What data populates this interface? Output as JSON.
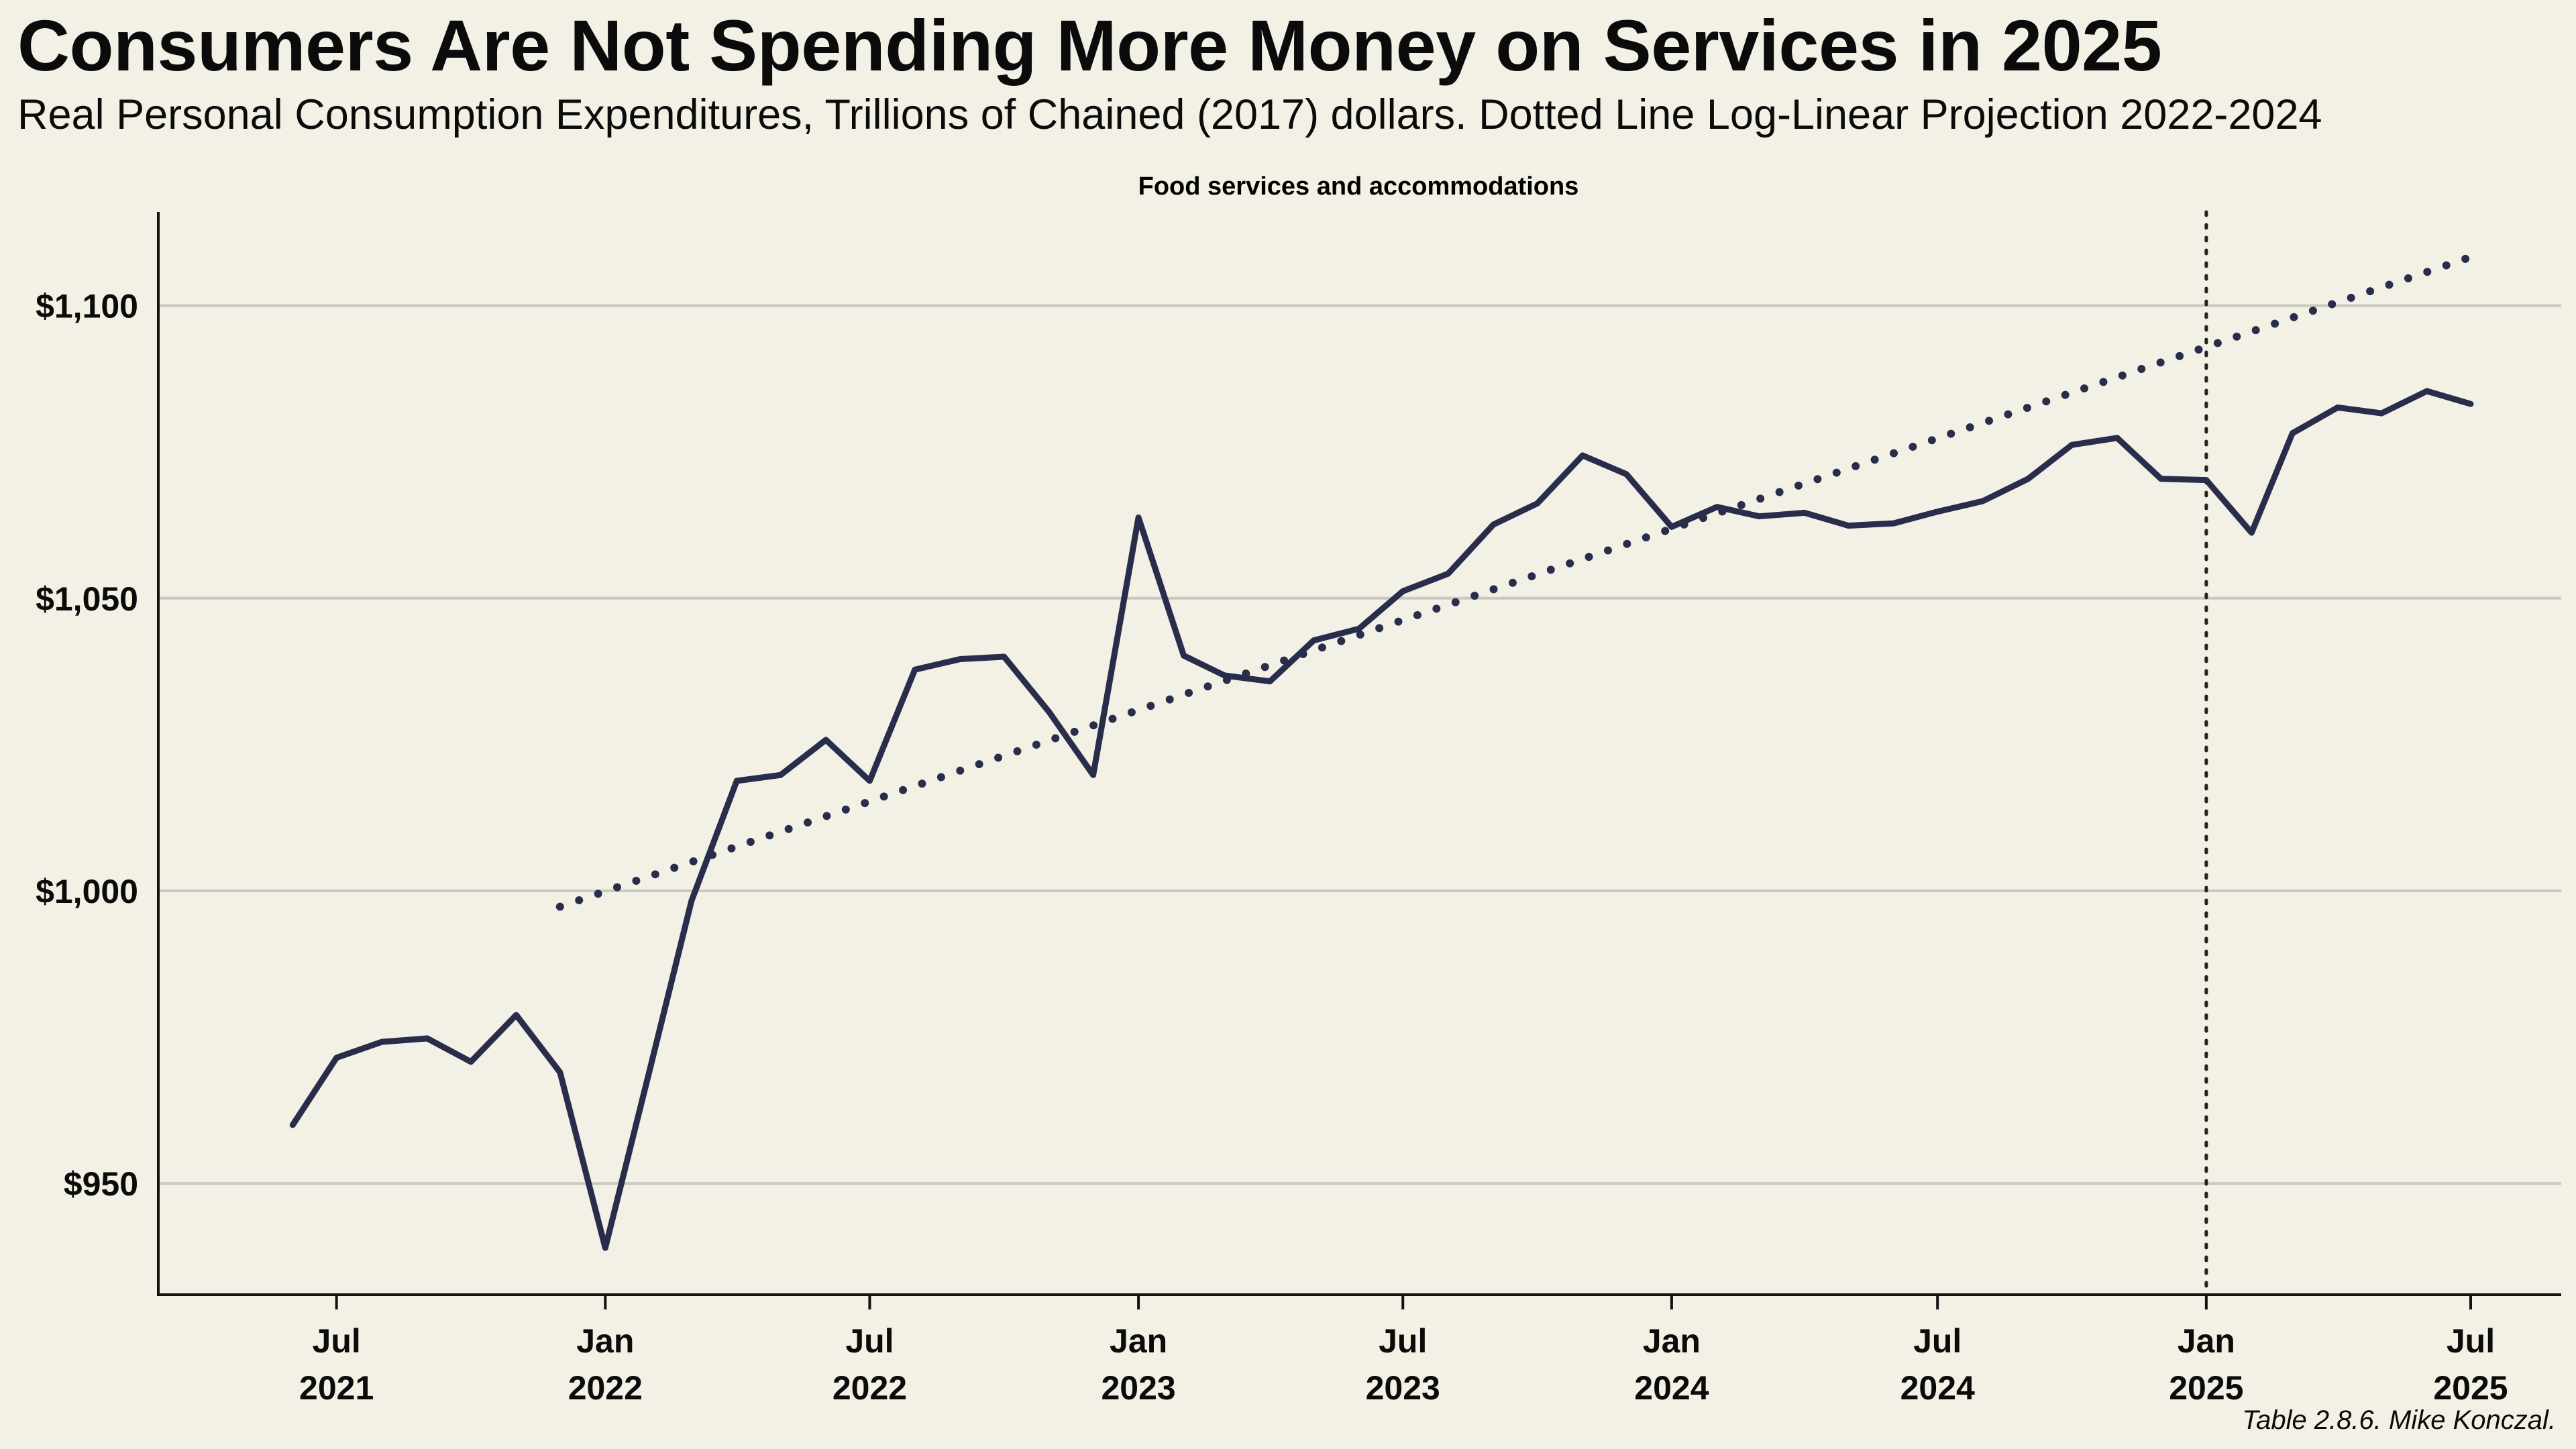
{
  "title": "Consumers Are Not Spending More Money on Services in 2025",
  "subtitle": "Real Personal Consumption Expenditures, Trillions of Chained (2017) dollars. Dotted Line Log-Linear Projection 2022-2024",
  "caption": "Table 2.8.6. Mike Konczal.",
  "colors": {
    "background": "#f3f1e5",
    "series": "#282d4c",
    "grid": "#c9c7c0",
    "axis": "#111111"
  },
  "chart_data": {
    "type": "line",
    "panel_title": "Food services and accommodations",
    "xlabel": "",
    "ylabel": "",
    "ylim": [
      931,
      1116
    ],
    "xlim": [
      "2021-03-01",
      "2025-09-01"
    ],
    "grid": "horizontal",
    "y_ticks": [
      {
        "value": 950,
        "label": "$950"
      },
      {
        "value": 1000,
        "label": "$1,000"
      },
      {
        "value": 1050,
        "label": "$1,050"
      },
      {
        "value": 1100,
        "label": "$1,100"
      }
    ],
    "x_ticks": [
      {
        "date": "2021-07-01",
        "month": "Jul",
        "year": "2021"
      },
      {
        "date": "2022-01-01",
        "month": "Jan",
        "year": "2022"
      },
      {
        "date": "2022-07-01",
        "month": "Jul",
        "year": "2022"
      },
      {
        "date": "2023-01-01",
        "month": "Jan",
        "year": "2023"
      },
      {
        "date": "2023-07-01",
        "month": "Jul",
        "year": "2023"
      },
      {
        "date": "2024-01-01",
        "month": "Jan",
        "year": "2024"
      },
      {
        "date": "2024-07-01",
        "month": "Jul",
        "year": "2024"
      },
      {
        "date": "2025-01-01",
        "month": "Jan",
        "year": "2025"
      },
      {
        "date": "2025-07-01",
        "month": "Jul",
        "year": "2025"
      }
    ],
    "reference_line": {
      "date": "2025-01-01",
      "style": "dotted"
    },
    "series": [
      {
        "style": "solid",
        "x": [
          "2021-06-01",
          "2021-07-01",
          "2021-08-01",
          "2021-09-01",
          "2021-10-01",
          "2021-11-01",
          "2021-12-01",
          "2022-01-01",
          "2022-02-01",
          "2022-03-01",
          "2022-04-01",
          "2022-05-01",
          "2022-06-01",
          "2022-07-01",
          "2022-08-01",
          "2022-09-01",
          "2022-10-01",
          "2022-11-01",
          "2022-12-01",
          "2023-01-01",
          "2023-02-01",
          "2023-03-01",
          "2023-04-01",
          "2023-05-01",
          "2023-06-01",
          "2023-07-01",
          "2023-08-01",
          "2023-09-01",
          "2023-10-01",
          "2023-11-01",
          "2023-12-01",
          "2024-01-01",
          "2024-02-01",
          "2024-03-01",
          "2024-04-01",
          "2024-05-01",
          "2024-06-01",
          "2024-07-01",
          "2024-08-01",
          "2024-09-01",
          "2024-10-01",
          "2024-11-01",
          "2024-12-01",
          "2025-01-01",
          "2025-02-01",
          "2025-03-01",
          "2025-04-01",
          "2025-05-01",
          "2025-06-01",
          "2025-07-01"
        ],
        "y": [
          960,
          971.5,
          974.2,
          974.8,
          970.8,
          978.8,
          969,
          939,
          970,
          998.3,
          1018.8,
          1019.8,
          1025.8,
          1018.8,
          1037.8,
          1039.6,
          1040,
          1030.5,
          1019.8,
          1063.8,
          1040.2,
          1036.8,
          1035.8,
          1042.8,
          1044.8,
          1051.2,
          1054.2,
          1062.6,
          1066.2,
          1074.4,
          1071.2,
          1062.2,
          1065.6,
          1064,
          1064.6,
          1062.4,
          1062.8,
          1064.8,
          1066.6,
          1070.4,
          1076.2,
          1077.4,
          1070.4,
          1070.2,
          1061.2,
          1078.2,
          1082.6,
          1081.6,
          1085.4,
          1083.2
        ]
      },
      {
        "style": "dotted",
        "x": [
          "2021-12-01",
          "2025-07-01"
        ],
        "y": [
          997.3,
          1108.3
        ]
      }
    ]
  }
}
